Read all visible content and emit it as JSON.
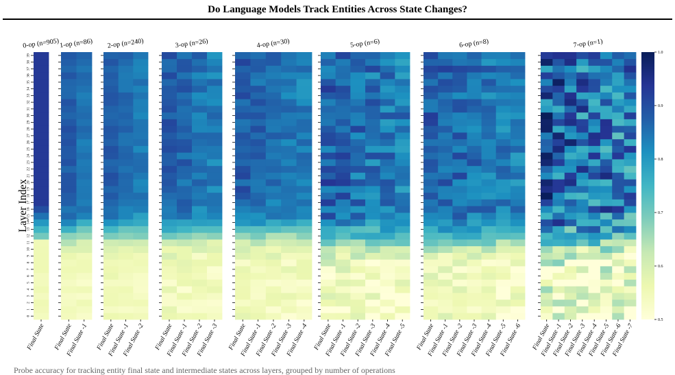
{
  "page": {
    "title": "Do Language Models Track Entities Across State Changes?",
    "caption": "Probe accuracy for tracking entity final state and intermediate states across layers, grouped by number of operations"
  },
  "chart_data": {
    "type": "heatmap",
    "ylabel": "Layer Index",
    "layers": [
      0,
      1,
      2,
      3,
      4,
      5,
      6,
      7,
      8,
      9,
      10,
      11,
      12,
      13,
      14,
      15,
      16,
      17,
      18,
      19,
      20,
      21,
      22,
      23,
      24,
      25,
      26,
      27,
      28,
      29,
      30,
      31,
      32,
      33,
      34,
      35,
      36,
      37,
      38,
      39
    ],
    "color_scale": {
      "vmin": 0.5,
      "vmax": 1.0,
      "ticks": [
        "0.5",
        "0.6",
        "0.7",
        "0.8",
        "0.9",
        "1.0"
      ],
      "colors": [
        "#ffffd9",
        "#edf8b1",
        "#c7e9b4",
        "#7fcdbb",
        "#41b6c4",
        "#1d91c0",
        "#225ea8",
        "#253494",
        "#081d58"
      ]
    },
    "panels": [
      {
        "title": "0-op (n=905)",
        "columns": [
          "Final State"
        ]
      },
      {
        "title": "1-op (n=86)",
        "columns": [
          "Final State",
          "Final State -1"
        ]
      },
      {
        "title": "2-op (n=240)",
        "columns": [
          "Final State",
          "Final State -1",
          "Final State -2"
        ]
      },
      {
        "title": "3-op (n=26)",
        "columns": [
          "Final State",
          "Final State -1",
          "Final State -2",
          "Final State -3"
        ]
      },
      {
        "title": "4-op (n=30)",
        "columns": [
          "Final State",
          "Final State -1",
          "Final State -2",
          "Final State -3",
          "Final State -4"
        ]
      },
      {
        "title": "5-op (n=6)",
        "columns": [
          "Final State",
          "Final State -1",
          "Final State -2",
          "Final State -3",
          "Final State -4",
          "Final State -5"
        ]
      },
      {
        "title": "6-op (n=8)",
        "columns": [
          "Final State",
          "Final State -1",
          "Final State -2",
          "Final State -3",
          "Final State -4",
          "Final State -5",
          "Final State -6"
        ]
      },
      {
        "title": "7-op (n=1)",
        "columns": [
          "Final State",
          "Final State -1",
          "Final State -2",
          "Final State -3",
          "Final State -4",
          "Final State -5",
          "Final State -6",
          "Final State -7"
        ]
      }
    ]
  }
}
